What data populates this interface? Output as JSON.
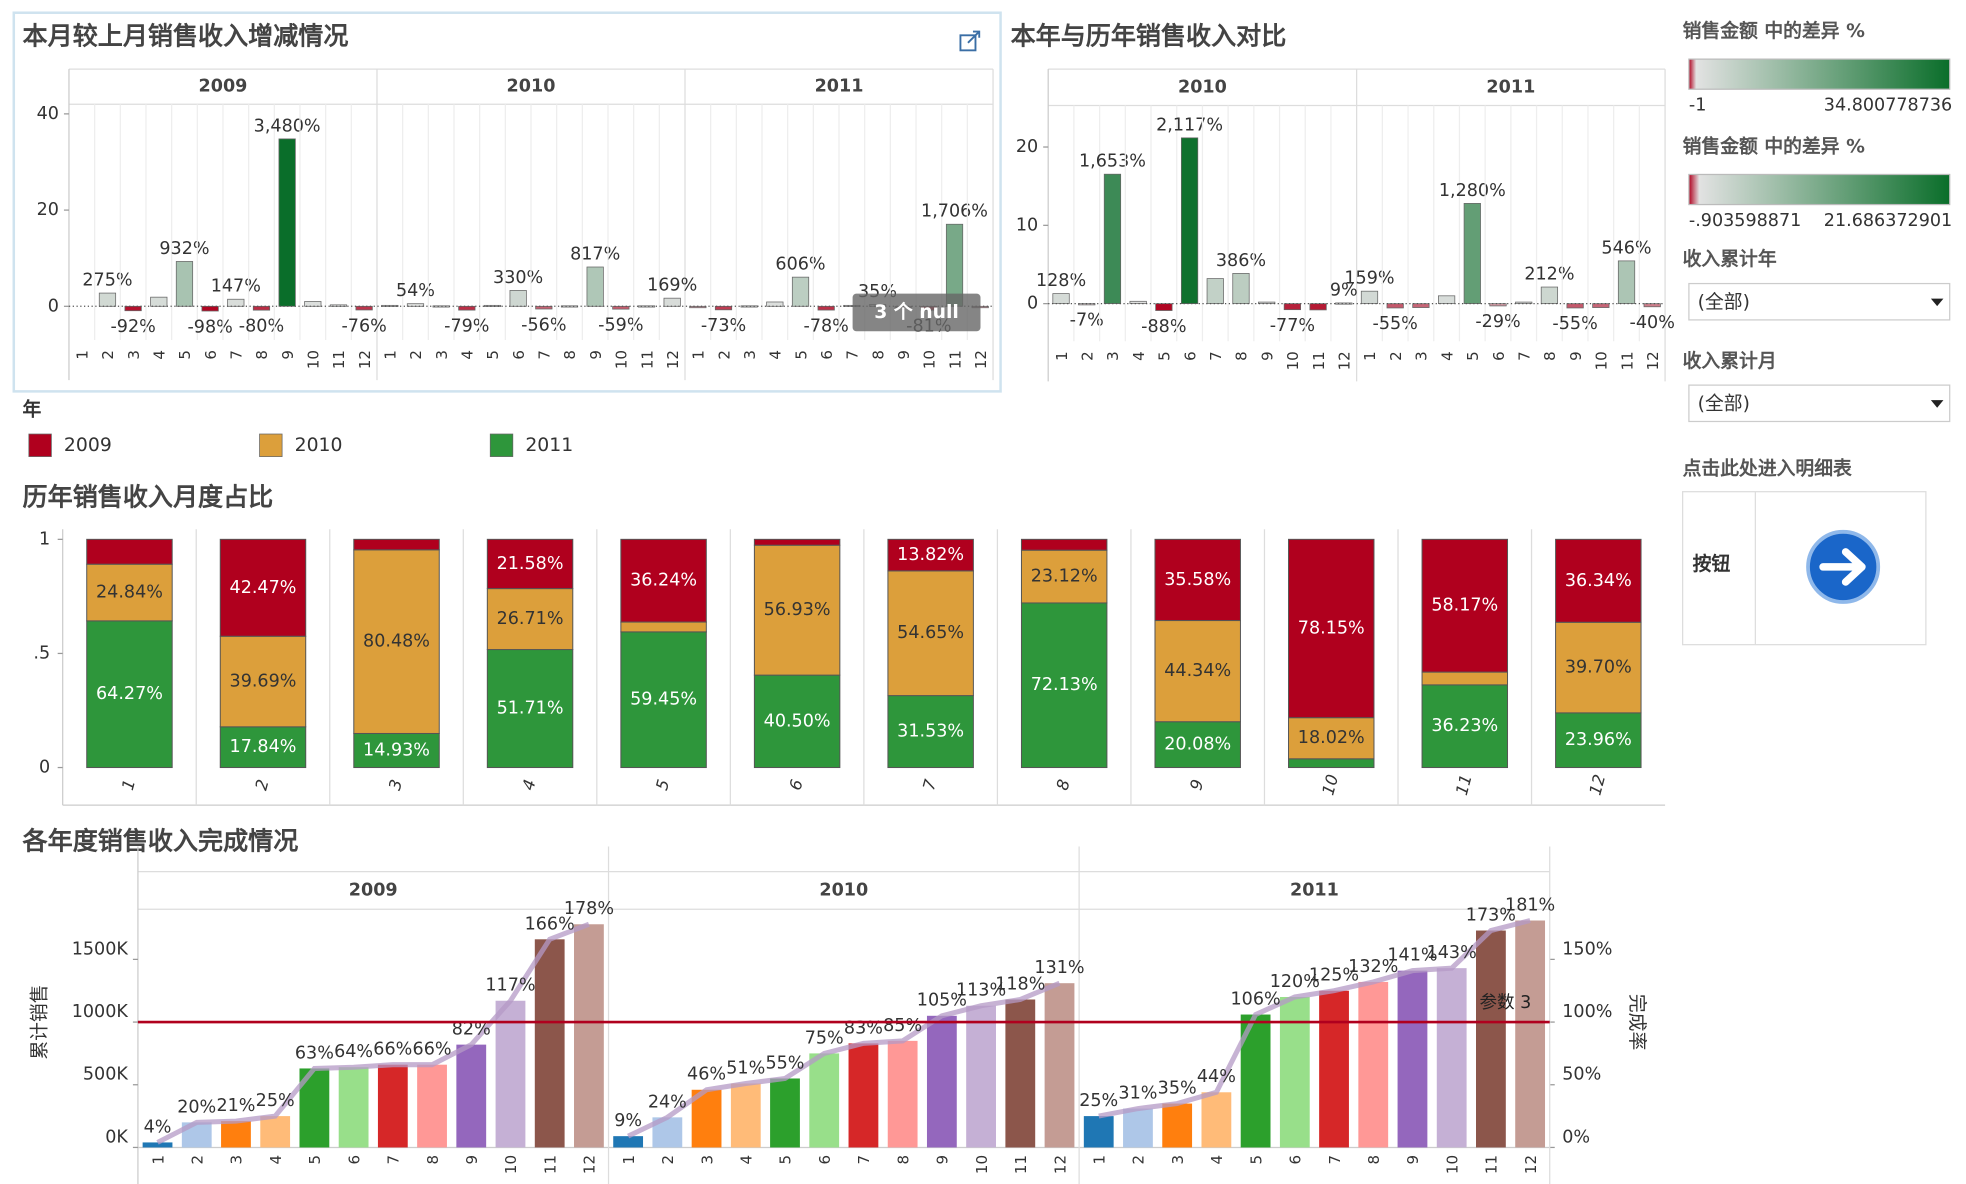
{
  "chart_data": [
    {
      "type": "facet_bar",
      "title": "本月较上月销售收入增减情况",
      "annotation": "3 个 null",
      "categories": [
        "1",
        "2",
        "3",
        "4",
        "5",
        "6",
        "7",
        "8",
        "9",
        "10",
        "11",
        "12"
      ],
      "ylim": [
        -7,
        42
      ],
      "yticks": [
        0,
        20,
        40
      ],
      "color_scale": {
        "title": "销售金额 中的差异 %",
        "min": -1,
        "max": 34.800778736,
        "colors": [
          "#b0001e",
          "#e2e2e2",
          "#0a6e2a"
        ]
      },
      "panels": [
        {
          "name": "2009",
          "values": [
            null,
            2.75,
            -0.92,
            1.9,
            9.32,
            -0.98,
            1.47,
            -0.8,
            34.8,
            1.0,
            0.3,
            -0.76
          ],
          "value_labels": [
            null,
            "275%",
            "-92%",
            null,
            "932%",
            "-98%",
            "147%",
            "-80%",
            "3,480%",
            null,
            null,
            "-76%"
          ]
        },
        {
          "name": "2010",
          "values": [
            0.2,
            0.54,
            0.1,
            -0.79,
            0.2,
            3.3,
            -0.56,
            0.1,
            8.17,
            -0.59,
            0.1,
            1.69
          ],
          "value_labels": [
            null,
            "54%",
            null,
            "-79%",
            null,
            "330%",
            "-56%",
            null,
            "817%",
            "-59%",
            null,
            "169%"
          ]
        },
        {
          "name": "2011",
          "values": [
            -0.3,
            -0.73,
            0.1,
            0.9,
            6.06,
            -0.78,
            0.2,
            0.35,
            -0.2,
            -0.81,
            17.06,
            -0.3
          ],
          "value_labels": [
            null,
            "-73%",
            null,
            null,
            "606%",
            "-78%",
            null,
            "35%",
            null,
            "-81%",
            "1,706%",
            null
          ]
        }
      ]
    },
    {
      "type": "facet_bar",
      "title": "本年与历年销售收入对比",
      "categories": [
        "1",
        "2",
        "3",
        "4",
        "5",
        "6",
        "7",
        "8",
        "9",
        "10",
        "11",
        "12"
      ],
      "ylim": [
        -4.8,
        25.3
      ],
      "yticks": [
        0,
        10,
        20
      ],
      "color_scale": {
        "title": "销售金额 中的差异 %",
        "min": {
          "value": -0.903598871,
          "label": "-.903598871"
        },
        "max": 21.686372901,
        "colors": [
          "#b0001e",
          "#e2e2e2",
          "#0a6e2a"
        ]
      },
      "panels": [
        {
          "name": "2010",
          "values": [
            1.28,
            -0.07,
            16.53,
            0.3,
            -0.88,
            21.17,
            3.2,
            3.86,
            0.2,
            -0.77,
            -0.8,
            0.09
          ],
          "value_labels": [
            "128%",
            "-7%",
            "1,653%",
            null,
            "-88%",
            "2,117%",
            null,
            "386%",
            null,
            "-77%",
            null,
            "9%"
          ]
        },
        {
          "name": "2011",
          "values": [
            1.59,
            -0.55,
            -0.5,
            1.0,
            12.8,
            -0.29,
            0.2,
            2.12,
            -0.55,
            -0.5,
            5.46,
            -0.4
          ],
          "value_labels": [
            "159%",
            "-55%",
            null,
            null,
            "1,280%",
            "-29%",
            null,
            "212%",
            "-55%",
            null,
            "546%",
            "-40%"
          ]
        }
      ]
    },
    {
      "type": "stacked_bar",
      "title": "历年销售收入月度占比",
      "legend_title": "年",
      "categories": [
        "1",
        "2",
        "3",
        "4",
        "5",
        "6",
        "7",
        "8",
        "9",
        "10",
        "11",
        "12"
      ],
      "ylim": [
        0,
        1
      ],
      "yticks": [
        0,
        {
          "value": 0.5,
          "label": ".5"
        },
        1
      ],
      "series": [
        {
          "name": "2009",
          "color": "#b0001e",
          "label_color": "#ffffff",
          "values": [
            0.1089,
            0.4247,
            0.0459,
            0.2158,
            0.3624,
            0.0257,
            0.1382,
            0.0475,
            0.3558,
            0.7815,
            0.5817,
            0.3634
          ],
          "value_labels": [
            null,
            "42.47%",
            null,
            "21.58%",
            "36.24%",
            null,
            "13.82%",
            null,
            "35.58%",
            "78.15%",
            "58.17%",
            "36.34%"
          ]
        },
        {
          "name": "2010",
          "color": "#dc9f3b",
          "label_color": "#333333",
          "values": [
            0.2484,
            0.3969,
            0.8048,
            0.2671,
            0.0431,
            0.5693,
            0.5465,
            0.2312,
            0.4434,
            0.1802,
            0.056,
            0.397
          ],
          "value_labels": [
            "24.84%",
            "39.69%",
            "80.48%",
            "26.71%",
            null,
            "56.93%",
            "54.65%",
            "23.12%",
            "44.34%",
            "18.02%",
            null,
            "39.70%"
          ]
        },
        {
          "name": "2011",
          "color": "#2e963b",
          "label_color": "#ffffff",
          "values": [
            0.6427,
            0.1784,
            0.1493,
            0.5171,
            0.5945,
            0.405,
            0.3153,
            0.7213,
            0.2008,
            0.0383,
            0.3623,
            0.2396
          ],
          "value_labels": [
            "64.27%",
            "17.84%",
            "14.93%",
            "51.71%",
            "59.45%",
            "40.50%",
            "31.53%",
            "72.13%",
            "20.08%",
            null,
            "36.23%",
            "23.96%"
          ]
        }
      ]
    },
    {
      "type": "facet_bar_line",
      "title": "各年度销售收入完成情况",
      "y_label": "累计销售",
      "y2_label": "完成率",
      "annotation": "参数 3",
      "categories": [
        "1",
        "2",
        "3",
        "4",
        "5",
        "6",
        "7",
        "8",
        "9",
        "10",
        "11",
        "12"
      ],
      "colors": [
        "#1f77b4",
        "#aec7e8",
        "#ff7f0e",
        "#ffbb78",
        "#2ca02c",
        "#98df8a",
        "#d62728",
        "#ff9896",
        "#9467bd",
        "#c5b0d5",
        "#8c564b",
        "#c49c94"
      ],
      "ylim": [
        0,
        1850000
      ],
      "yticks": [
        {
          "value": 0,
          "label": "0K"
        },
        {
          "value": 500000,
          "label": "500K"
        },
        {
          "value": 1000000,
          "label": "1000K"
        },
        {
          "value": 1500000,
          "label": "1500K"
        }
      ],
      "y2lim": [
        0,
        1.85
      ],
      "y2ticks": [
        {
          "value": 0,
          "label": "0%"
        },
        {
          "value": 0.5,
          "label": "50%"
        },
        {
          "value": 1,
          "label": "100%"
        },
        {
          "value": 1.5,
          "label": "150%"
        }
      ],
      "reference_line": {
        "value": 1,
        "axis": "y2",
        "color": "#b0001e"
      },
      "panels": [
        {
          "name": "2009",
          "values": [
            40000,
            200000,
            210000,
            250000,
            630000,
            640000,
            660000,
            660000,
            820000,
            1170000,
            1660000,
            1780000
          ],
          "rates": [
            0.04,
            0.2,
            0.21,
            0.25,
            0.63,
            0.64,
            0.66,
            0.66,
            0.82,
            1.17,
            1.66,
            1.78
          ],
          "rate_labels": [
            "4%",
            "20%",
            "21%",
            "25%",
            "63%",
            "64%",
            "66%",
            "66%",
            "82%",
            "117%",
            "166%",
            "178%"
          ]
        },
        {
          "name": "2010",
          "values": [
            90000,
            240000,
            460000,
            510000,
            550000,
            750000,
            830000,
            850000,
            1050000,
            1130000,
            1180000,
            1310000
          ],
          "rates": [
            0.09,
            0.24,
            0.46,
            0.51,
            0.55,
            0.75,
            0.83,
            0.85,
            1.05,
            1.13,
            1.18,
            1.31
          ],
          "rate_labels": [
            "9%",
            "24%",
            "46%",
            "51%",
            "55%",
            "75%",
            "83%",
            "85%",
            "105%",
            "113%",
            "118%",
            "131%"
          ]
        },
        {
          "name": "2011",
          "values": [
            250000,
            310000,
            350000,
            440000,
            1060000,
            1200000,
            1250000,
            1320000,
            1410000,
            1430000,
            1730000,
            1810000
          ],
          "rates": [
            0.25,
            0.31,
            0.35,
            0.44,
            1.06,
            1.2,
            1.25,
            1.32,
            1.41,
            1.43,
            1.73,
            1.81
          ],
          "rate_labels": [
            "25%",
            "31%",
            "35%",
            "44%",
            "106%",
            "120%",
            "125%",
            "132%",
            "141%",
            "143%",
            "173%",
            "181%"
          ]
        }
      ]
    }
  ],
  "filters": [
    {
      "title": "收入累计年",
      "value": "(全部)"
    },
    {
      "title": "收入累计月",
      "value": "(全部)"
    }
  ],
  "link": {
    "title": "点击此处进入明细表",
    "button": "按钮"
  }
}
